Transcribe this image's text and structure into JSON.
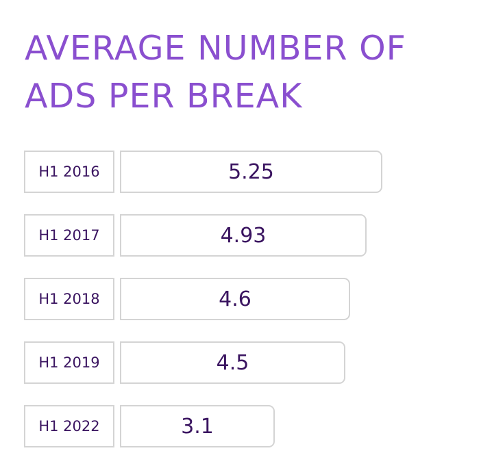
{
  "title_lines": [
    "AVERAGE NUMBER OF",
    "ADS PER BREAK"
  ],
  "colors": {
    "title": "#8a4fcf",
    "text": "#3a1460",
    "border": "#d4d4d4",
    "background": "#ffffff"
  },
  "chart_data": {
    "type": "bar",
    "orientation": "horizontal",
    "title": "AVERAGE NUMBER OF ADS PER BREAK",
    "categories": [
      "H1 2016",
      "H1 2017",
      "H1 2018",
      "H1 2019",
      "H1 2022"
    ],
    "values": [
      5.25,
      4.93,
      4.6,
      4.5,
      3.1
    ],
    "value_labels": [
      "5.25",
      "4.93",
      "4.6",
      "4.5",
      "3.1"
    ],
    "xlabel": "",
    "ylabel": "",
    "grid": false,
    "legend": "none"
  }
}
